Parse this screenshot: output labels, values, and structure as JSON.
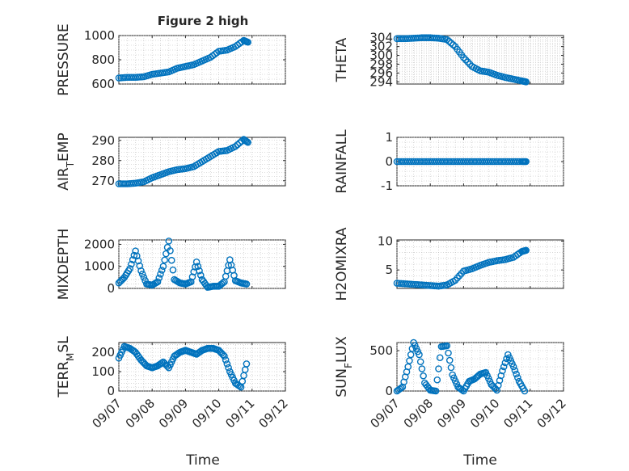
{
  "figure": {
    "title": "Figure 2 high",
    "xlabel": "Time",
    "series_color": "#0072bd"
  },
  "chart_data": [
    {
      "id": "pressure",
      "type": "scatter",
      "title": "Figure 2 high",
      "ylabel": "PRESSURE",
      "xlabel": "",
      "x": [
        "09/07 00:00",
        "09/07 06:00",
        "09/07 12:00",
        "09/07 18:00",
        "09/08 00:00",
        "09/08 06:00",
        "09/08 12:00",
        "09/08 18:00",
        "09/09 00:00",
        "09/09 06:00",
        "09/09 12:00",
        "09/09 18:00",
        "09/10 00:00",
        "09/10 06:00",
        "09/10 12:00",
        "09/10 18:00",
        "09/10 21:00"
      ],
      "y": [
        650,
        655,
        655,
        660,
        680,
        690,
        700,
        730,
        745,
        760,
        790,
        820,
        870,
        880,
        910,
        960,
        945
      ],
      "xlim": [
        "09/07",
        "09/12"
      ],
      "ylim": [
        600,
        1000
      ],
      "yticks": [
        600,
        800,
        1000
      ],
      "xticks": [
        "09/07",
        "09/08",
        "09/09",
        "09/10",
        "09/11",
        "09/12"
      ],
      "show_xticklabels": false,
      "grid": true
    },
    {
      "id": "theta",
      "type": "scatter",
      "title": "",
      "ylabel": "THETA",
      "xlabel": "",
      "x": [
        "09/07 00:00",
        "09/07 06:00",
        "09/07 12:00",
        "09/07 18:00",
        "09/08 00:00",
        "09/08 06:00",
        "09/08 12:00",
        "09/08 18:00",
        "09/09 00:00",
        "09/09 06:00",
        "09/09 12:00",
        "09/09 18:00",
        "09/10 00:00",
        "09/10 06:00",
        "09/10 12:00",
        "09/10 18:00",
        "09/10 21:00"
      ],
      "y": [
        303.8,
        303.8,
        303.9,
        304.0,
        304.0,
        303.9,
        303.6,
        302,
        299.5,
        297.5,
        296.5,
        296.2,
        295.5,
        295.0,
        294.6,
        294.2,
        294.0
      ],
      "xlim": [
        "09/07",
        "09/12"
      ],
      "ylim": [
        293.5,
        304.5
      ],
      "yticks": [
        294,
        296,
        298,
        300,
        302,
        304
      ],
      "xticks": [
        "09/07",
        "09/08",
        "09/09",
        "09/10",
        "09/11",
        "09/12"
      ],
      "show_xticklabels": false,
      "grid": true
    },
    {
      "id": "air-temp",
      "type": "scatter",
      "title": "",
      "ylabel": "AIR_TEMP",
      "xlabel": "",
      "x": [
        "09/07 00:00",
        "09/07 06:00",
        "09/07 12:00",
        "09/07 18:00",
        "09/08 00:00",
        "09/08 06:00",
        "09/08 12:00",
        "09/08 18:00",
        "09/09 00:00",
        "09/09 06:00",
        "09/09 12:00",
        "09/09 18:00",
        "09/10 00:00",
        "09/10 06:00",
        "09/10 12:00",
        "09/10 18:00",
        "09/10 21:00"
      ],
      "y": [
        268.5,
        268.5,
        268.8,
        269.5,
        271.5,
        273,
        274.5,
        275.5,
        276,
        277,
        279.5,
        282,
        284.5,
        285,
        287,
        290.5,
        289
      ],
      "xlim": [
        "09/07",
        "09/12"
      ],
      "ylim": [
        267.5,
        291.5
      ],
      "yticks": [
        270,
        280,
        290
      ],
      "xticks": [
        "09/07",
        "09/08",
        "09/09",
        "09/10",
        "09/11",
        "09/12"
      ],
      "show_xticklabels": false,
      "grid": true
    },
    {
      "id": "rainfall",
      "type": "scatter",
      "title": "",
      "ylabel": "RAINFALL",
      "xlabel": "",
      "x": [
        "09/07 00:00",
        "09/07 06:00",
        "09/07 12:00",
        "09/07 18:00",
        "09/08 00:00",
        "09/08 06:00",
        "09/08 12:00",
        "09/08 18:00",
        "09/09 00:00",
        "09/09 06:00",
        "09/09 12:00",
        "09/09 18:00",
        "09/10 00:00",
        "09/10 06:00",
        "09/10 12:00",
        "09/10 18:00",
        "09/10 21:00"
      ],
      "y": [
        0,
        0,
        0,
        0,
        0,
        0,
        0,
        0,
        0,
        0,
        0,
        0,
        0,
        0,
        0,
        0,
        0
      ],
      "xlim": [
        "09/07",
        "09/12"
      ],
      "ylim": [
        -1,
        1
      ],
      "yticks": [
        -1,
        0,
        1
      ],
      "xticks": [
        "09/07",
        "09/08",
        "09/09",
        "09/10",
        "09/11",
        "09/12"
      ],
      "show_xticklabels": false,
      "grid": true
    },
    {
      "id": "mixdepth",
      "type": "scatter",
      "title": "",
      "ylabel": "MIXDEPTH",
      "xlabel": "",
      "x": [
        "09/07 00:00",
        "09/07 04:00",
        "09/07 08:00",
        "09/07 12:00",
        "09/07 16:00",
        "09/07 20:00",
        "09/08 00:00",
        "09/08 04:00",
        "09/08 08:00",
        "09/08 12:00",
        "09/08 16:00",
        "09/08 20:00",
        "09/09 00:00",
        "09/09 04:00",
        "09/09 08:00",
        "09/09 12:00",
        "09/09 16:00",
        "09/09 20:00",
        "09/10 00:00",
        "09/10 04:00",
        "09/10 08:00",
        "09/10 12:00",
        "09/10 16:00",
        "09/10 20:00"
      ],
      "y": [
        250,
        500,
        900,
        1700,
        800,
        200,
        150,
        300,
        1000,
        2150,
        400,
        250,
        200,
        300,
        1200,
        400,
        50,
        100,
        100,
        300,
        1300,
        350,
        250,
        200
      ],
      "xlim": [
        "09/07",
        "09/12"
      ],
      "ylim": [
        0,
        2200
      ],
      "yticks": [
        0,
        1000,
        2000
      ],
      "xticks": [
        "09/07",
        "09/08",
        "09/09",
        "09/10",
        "09/11",
        "09/12"
      ],
      "show_xticklabels": false,
      "grid": true
    },
    {
      "id": "h2omixra",
      "type": "scatter",
      "title": "",
      "ylabel": "H2OMIXRA",
      "xlabel": "",
      "x": [
        "09/07 00:00",
        "09/07 06:00",
        "09/07 12:00",
        "09/07 18:00",
        "09/08 00:00",
        "09/08 06:00",
        "09/08 12:00",
        "09/08 18:00",
        "09/09 00:00",
        "09/09 06:00",
        "09/09 12:00",
        "09/09 18:00",
        "09/10 00:00",
        "09/10 06:00",
        "09/10 12:00",
        "09/10 18:00",
        "09/10 21:00"
      ],
      "y": [
        2.7,
        2.6,
        2.5,
        2.4,
        2.3,
        2.2,
        2.4,
        3.2,
        4.8,
        5.2,
        5.8,
        6.3,
        6.6,
        6.8,
        7.2,
        8.2,
        8.4
      ],
      "xlim": [
        "09/07",
        "09/12"
      ],
      "ylim": [
        1.8,
        10.2
      ],
      "yticks": [
        5,
        10
      ],
      "xticks": [
        "09/07",
        "09/08",
        "09/09",
        "09/10",
        "09/11",
        "09/12"
      ],
      "show_xticklabels": false,
      "grid": true
    },
    {
      "id": "terr-msl",
      "type": "scatter",
      "title": "",
      "ylabel": "TERR_MSL",
      "xlabel": "Time",
      "x": [
        "09/07 00:00",
        "09/07 04:00",
        "09/07 08:00",
        "09/07 12:00",
        "09/07 16:00",
        "09/07 20:00",
        "09/08 00:00",
        "09/08 04:00",
        "09/08 08:00",
        "09/08 12:00",
        "09/08 16:00",
        "09/08 20:00",
        "09/09 00:00",
        "09/09 04:00",
        "09/09 08:00",
        "09/09 12:00",
        "09/09 16:00",
        "09/09 20:00",
        "09/10 00:00",
        "09/10 04:00",
        "09/10 08:00",
        "09/10 12:00",
        "09/10 16:00",
        "09/10 20:00"
      ],
      "y": [
        170,
        230,
        220,
        200,
        160,
        130,
        120,
        130,
        150,
        120,
        180,
        200,
        210,
        200,
        190,
        210,
        220,
        220,
        210,
        180,
        100,
        40,
        20,
        140
      ],
      "xlim": [
        "09/07",
        "09/12"
      ],
      "ylim": [
        0,
        250
      ],
      "yticks": [
        0,
        100,
        200
      ],
      "xticks": [
        "09/07",
        "09/08",
        "09/09",
        "09/10",
        "09/11",
        "09/12"
      ],
      "show_xticklabels": true,
      "grid": true
    },
    {
      "id": "sun-flux",
      "type": "scatter",
      "title": "",
      "ylabel": "SUN_FLUX",
      "xlabel": "Time",
      "x": [
        "09/07 00:00",
        "09/07 04:00",
        "09/07 08:00",
        "09/07 12:00",
        "09/07 16:00",
        "09/07 20:00",
        "09/08 00:00",
        "09/08 04:00",
        "09/08 08:00",
        "09/08 12:00",
        "09/08 16:00",
        "09/08 20:00",
        "09/09 00:00",
        "09/09 04:00",
        "09/09 08:00",
        "09/09 12:00",
        "09/09 16:00",
        "09/09 20:00",
        "09/10 00:00",
        "09/10 04:00",
        "09/10 08:00",
        "09/10 12:00",
        "09/10 16:00",
        "09/10 20:00"
      ],
      "y": [
        0,
        50,
        300,
        600,
        450,
        100,
        10,
        0,
        550,
        560,
        200,
        50,
        0,
        120,
        150,
        210,
        230,
        80,
        10,
        250,
        450,
        300,
        120,
        0
      ],
      "xlim": [
        "09/07",
        "09/12"
      ],
      "ylim": [
        0,
        600
      ],
      "yticks": [
        0,
        500
      ],
      "xticks": [
        "09/07",
        "09/08",
        "09/09",
        "09/10",
        "09/11",
        "09/12"
      ],
      "show_xticklabels": true,
      "grid": true
    }
  ]
}
